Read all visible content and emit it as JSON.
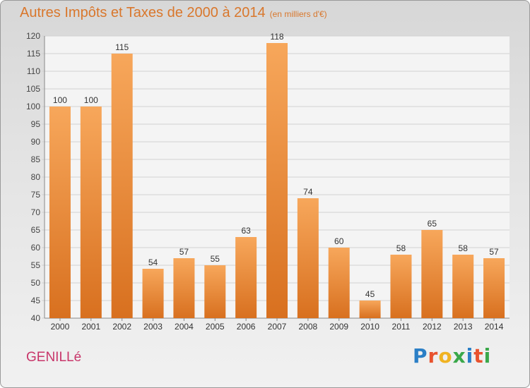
{
  "header": {
    "title": "Autres Impôts et Taxes de 2000 à 2014",
    "subtitle": "(en milliers d'€)"
  },
  "footer": {
    "commune": "GENILLé",
    "logo_letters": [
      "P",
      "r",
      "o",
      "x",
      "i",
      "t",
      "i"
    ],
    "logo_colors": [
      "#2b7fc6",
      "#e8522e",
      "#f0b322",
      "#3aa84a",
      "#2b7fc6",
      "#e8522e",
      "#3aa84a"
    ]
  },
  "colors": {
    "bar_top": "#f7a75b",
    "bar_bottom": "#d8701f",
    "title": "#d9772c",
    "commune": "#c8366a"
  },
  "chart_data": {
    "type": "bar",
    "categories": [
      "2000",
      "2001",
      "2002",
      "2003",
      "2004",
      "2005",
      "2006",
      "2007",
      "2008",
      "2009",
      "2010",
      "2011",
      "2012",
      "2013",
      "2014"
    ],
    "values": [
      100,
      100,
      115,
      54,
      57,
      55,
      63,
      118,
      74,
      60,
      45,
      58,
      65,
      58,
      57
    ],
    "ylim": [
      40,
      120
    ],
    "yticks": [
      40,
      45,
      50,
      55,
      60,
      65,
      70,
      75,
      80,
      85,
      90,
      95,
      100,
      105,
      110,
      115,
      120
    ],
    "grid": true
  }
}
